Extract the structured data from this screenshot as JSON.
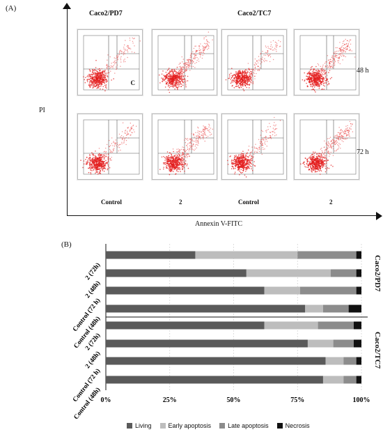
{
  "figure": {
    "panel_a_label": "(A)",
    "panel_b_label": "(B)",
    "y_axis_label": "PI",
    "x_axis_label": "Annexin V-FITC",
    "col_group_left": "Caco2/PD7",
    "col_group_right": "Caco2/TC7",
    "row_labels": [
      "48 h",
      "72 h"
    ],
    "col_labels": [
      "Control",
      "2",
      "Control",
      "2"
    ],
    "panel_note": "C"
  },
  "chart_data": {
    "type": "bar",
    "stacked": true,
    "orientation": "horizontal",
    "categories": [
      "2 (72h)",
      "2 (48h)",
      "Control (72 h)",
      "Control (48h)",
      "2 (72h)",
      "2 (48h)",
      "Control (72 h)",
      "Control (48h)"
    ],
    "groups": [
      {
        "name": "Caco2/PD7",
        "categories": [
          "2 (72h)",
          "2 (48h)",
          "Control (72 h)",
          "Control (48h)"
        ]
      },
      {
        "name": "Caco2/TC7",
        "categories": [
          "2 (72h)",
          "2 (48h)",
          "Control (72 h)",
          "Control (48h)"
        ]
      }
    ],
    "series": [
      {
        "name": "Living",
        "color": "#5a5a5a",
        "values": [
          35,
          55,
          62,
          78,
          62,
          79,
          86,
          85
        ]
      },
      {
        "name": "Early apoptosis",
        "color": "#bdbdbd",
        "values": [
          40,
          33,
          14,
          7,
          21,
          10,
          7,
          8
        ]
      },
      {
        "name": "Late apoptosis",
        "color": "#8c8c8c",
        "values": [
          23,
          10,
          22,
          10,
          14,
          8,
          5,
          5
        ]
      },
      {
        "name": "Necrosis",
        "color": "#111111",
        "values": [
          2,
          2,
          2,
          5,
          3,
          3,
          2,
          2
        ]
      }
    ],
    "xticks": [
      "0%",
      "25%",
      "50%",
      "75%",
      "100%"
    ],
    "xlim": [
      0,
      100
    ],
    "grid": true,
    "legend": "bottom"
  }
}
